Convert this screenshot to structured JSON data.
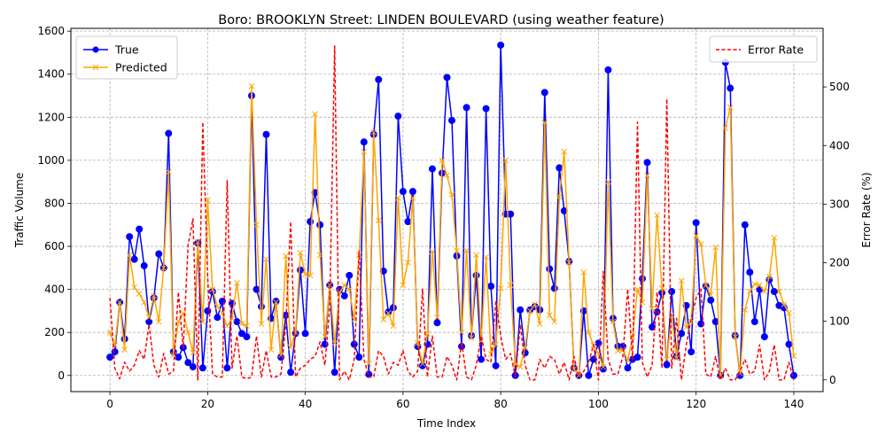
{
  "chart_data": {
    "type": "line",
    "title": "Boro: BROOKLYN Street: LINDEN BOULEVARD (using weather feature)",
    "xlabel": "Time Index",
    "ylabel": "Traffic Volume",
    "y2label": "Error Rate (%)",
    "xlim": [
      -8,
      146
    ],
    "ylim": [
      -75,
      1613
    ],
    "y2lim": [
      -20,
      600
    ],
    "xticks": [
      "0",
      "20",
      "40",
      "60",
      "80",
      "100",
      "120",
      "140"
    ],
    "yticks": [
      "0",
      "200",
      "400",
      "600",
      "800",
      "1000",
      "1200",
      "1400",
      "1600"
    ],
    "y2ticks": [
      "0",
      "100",
      "200",
      "300",
      "400",
      "500"
    ],
    "legend_left_position": "upper-left",
    "legend_right_position": "upper-right",
    "x": [
      0,
      1,
      2,
      3,
      4,
      5,
      6,
      7,
      8,
      9,
      10,
      11,
      12,
      13,
      14,
      15,
      16,
      17,
      18,
      19,
      20,
      21,
      22,
      23,
      24,
      25,
      26,
      27,
      28,
      29,
      30,
      31,
      32,
      33,
      34,
      35,
      36,
      37,
      38,
      39,
      40,
      41,
      42,
      43,
      44,
      45,
      46,
      47,
      48,
      49,
      50,
      51,
      52,
      53,
      54,
      55,
      56,
      57,
      58,
      59,
      60,
      61,
      62,
      63,
      64,
      65,
      66,
      67,
      68,
      69,
      70,
      71,
      72,
      73,
      74,
      75,
      76,
      77,
      78,
      79,
      80,
      81,
      82,
      83,
      84,
      85,
      86,
      87,
      88,
      89,
      90,
      91,
      92,
      93,
      94,
      95,
      96,
      97,
      98,
      99,
      100,
      101,
      102,
      103,
      104,
      105,
      106,
      107,
      108,
      109,
      110,
      111,
      112,
      113,
      114,
      115,
      116,
      117,
      118,
      119,
      120,
      121,
      122,
      123,
      124,
      125,
      126,
      127,
      128,
      129,
      130,
      131,
      132,
      133,
      134,
      135,
      136,
      137,
      138,
      139,
      140
    ],
    "series": [
      {
        "name": "True",
        "axis": "left",
        "color": "#0000ff",
        "marker": "circle",
        "values": [
          85,
          110,
          340,
          170,
          645,
          540,
          680,
          510,
          250,
          360,
          565,
          500,
          1125,
          110,
          85,
          130,
          60,
          40,
          615,
          35,
          300,
          390,
          270,
          345,
          35,
          335,
          250,
          195,
          180,
          1300,
          400,
          320,
          1120,
          265,
          345,
          85,
          280,
          15,
          195,
          490,
          195,
          715,
          850,
          700,
          145,
          420,
          15,
          400,
          370,
          465,
          145,
          85,
          1085,
          5,
          1120,
          1375,
          485,
          295,
          315,
          1205,
          855,
          715,
          855,
          135,
          45,
          145,
          960,
          245,
          940,
          1385,
          1185,
          555,
          135,
          1245,
          185,
          465,
          75,
          1240,
          415,
          45,
          1535,
          750,
          750,
          0,
          305,
          105,
          305,
          320,
          305,
          1315,
          495,
          405,
          965,
          765,
          530,
          35,
          0,
          300,
          0,
          75,
          150,
          30,
          1420,
          265,
          135,
          135,
          35,
          75,
          85,
          450,
          990,
          225,
          295,
          385,
          50,
          390,
          90,
          195,
          325,
          110,
          710,
          240,
          415,
          350,
          250,
          0,
          1455,
          1335,
          185,
          0,
          700,
          480,
          250,
          400,
          180,
          445,
          390,
          325,
          315,
          145,
          0
        ]
      },
      {
        "name": "Predicted",
        "axis": "left",
        "color": "#ffa500",
        "marker": "x",
        "values": [
          200,
          140,
          340,
          120,
          560,
          410,
          380,
          340,
          270,
          370,
          250,
          500,
          945,
          95,
          250,
          290,
          200,
          105,
          620,
          250,
          815,
          400,
          320,
          290,
          230,
          265,
          430,
          240,
          230,
          1345,
          700,
          240,
          540,
          120,
          340,
          95,
          555,
          130,
          200,
          570,
          470,
          465,
          1215,
          560,
          180,
          420,
          150,
          385,
          420,
          400,
          260,
          560,
          1040,
          55,
          1130,
          720,
          260,
          290,
          230,
          825,
          420,
          525,
          825,
          150,
          55,
          195,
          575,
          270,
          1000,
          930,
          840,
          580,
          200,
          580,
          175,
          560,
          160,
          550,
          100,
          145,
          405,
          1000,
          420,
          50,
          40,
          130,
          300,
          330,
          240,
          1175,
          280,
          250,
          830,
          1040,
          525,
          30,
          0,
          480,
          200,
          140,
          100,
          40,
          900,
          250,
          115,
          120,
          70,
          180,
          400,
          340,
          930,
          310,
          745,
          405,
          75,
          280,
          80,
          440,
          225,
          250,
          650,
          610,
          420,
          375,
          595,
          0,
          1150,
          1245,
          180,
          10,
          305,
          390,
          425,
          420,
          390,
          460,
          640,
          390,
          330,
          290,
          90
        ]
      },
      {
        "name": "Error Rate",
        "axis": "right",
        "color": "#ff0000",
        "marker": "none",
        "dashed": true,
        "values": [
          140,
          20,
          2,
          30,
          15,
          25,
          50,
          35,
          95,
          25,
          5,
          45,
          10,
          15,
          150,
          55,
          230,
          275,
          0,
          440,
          175,
          10,
          5,
          5,
          340,
          20,
          75,
          5,
          2,
          5,
          75,
          5,
          50,
          5,
          5,
          10,
          95,
          270,
          5,
          20,
          25,
          35,
          40,
          65,
          25,
          125,
          570,
          0,
          15,
          0,
          35,
          220,
          35,
          5,
          5,
          50,
          40,
          10,
          30,
          25,
          50,
          15,
          5,
          15,
          155,
          5,
          75,
          5,
          5,
          40,
          25,
          0,
          65,
          5,
          0,
          25,
          75,
          35,
          30,
          135,
          75,
          35,
          45,
          5,
          95,
          25,
          0,
          0,
          35,
          20,
          40,
          35,
          10,
          30,
          0,
          40,
          5,
          15,
          30,
          60,
          0,
          185,
          35,
          10,
          10,
          40,
          155,
          35,
          440,
          30,
          5,
          25,
          150,
          20,
          480,
          20,
          105,
          0,
          60,
          105,
          140,
          155,
          10,
          5,
          40,
          0,
          20,
          0,
          0,
          15,
          35,
          10,
          15,
          60,
          0,
          15,
          60,
          0,
          0,
          30,
          0
        ]
      }
    ]
  }
}
